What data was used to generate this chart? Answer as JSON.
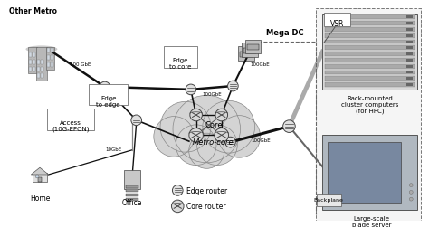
{
  "bg_color": "#ffffff",
  "labels": {
    "other_metro": "Other Metro",
    "mega_dc": "Mega DC",
    "vsr": "VSR",
    "edge_to_core": "Edge\nto core",
    "edge_to_edge": "Edge\nto edge",
    "access": "Access\n(10G-EPON)",
    "home": "Home",
    "office": "Office",
    "core": "Core",
    "metro_core": "Metro-core",
    "rack_mounted": "Rack-mounted\ncluster computers\n(for HPC)",
    "large_scale": "Large-scale\nblade server",
    "backplane": "Backplane",
    "edge_router": "Edge router",
    "core_router": "Core router",
    "100gbe_1": "100 GbE",
    "100gbe_2": "100GbE",
    "100gbe_3": "100GbE",
    "100gbe_4": "100GbE",
    "10gbe": "10GbE"
  },
  "font_size": 5.5
}
